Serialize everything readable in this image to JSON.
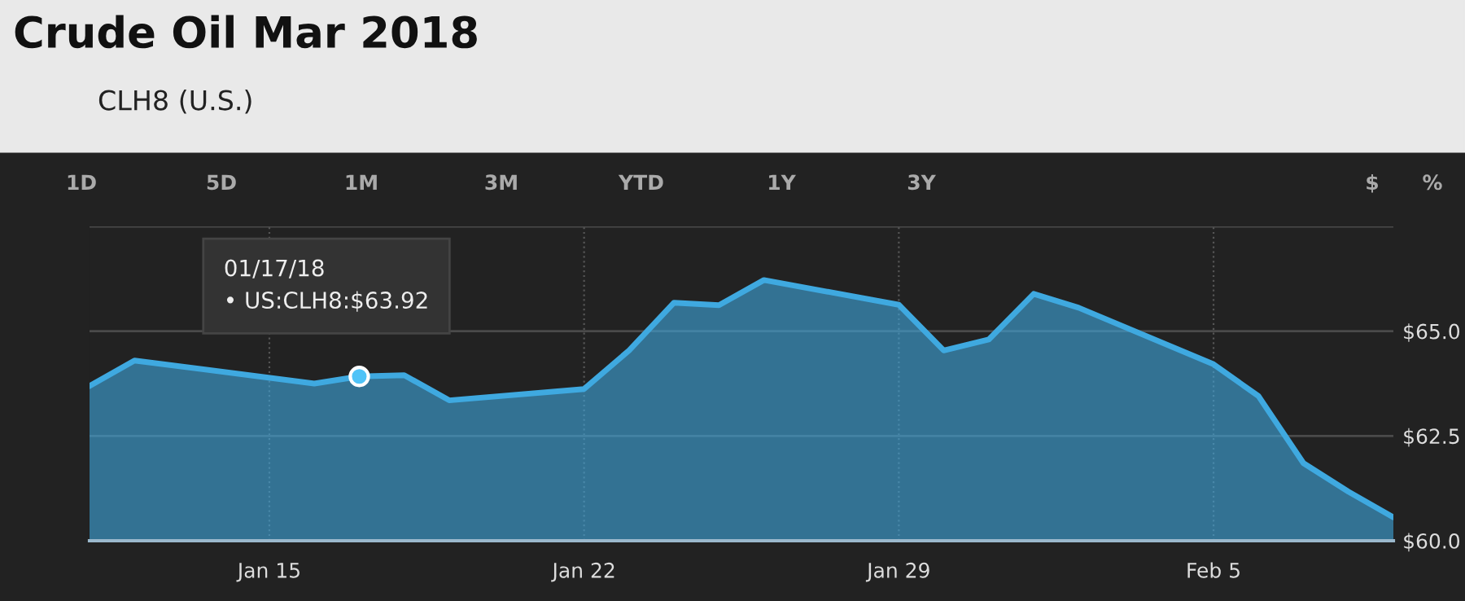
{
  "chart_data": {
    "type": "area",
    "title": "Crude Oil Mar 2018",
    "subtitle": "CLH8 (U.S.)",
    "x": [
      "2018-01-11",
      "2018-01-12",
      "2018-01-16",
      "2018-01-17",
      "2018-01-18",
      "2018-01-19",
      "2018-01-22",
      "2018-01-23",
      "2018-01-24",
      "2018-01-25",
      "2018-01-26",
      "2018-01-29",
      "2018-01-30",
      "2018-01-31",
      "2018-02-01",
      "2018-02-02",
      "2018-02-05",
      "2018-02-06",
      "2018-02-07",
      "2018-02-08",
      "2018-02-09"
    ],
    "series": [
      {
        "color": "#3fa9e0",
        "values": [
          63.69,
          64.3,
          63.75,
          63.92,
          63.95,
          63.35,
          63.62,
          64.54,
          65.68,
          65.62,
          66.22,
          65.63,
          64.54,
          64.8,
          65.89,
          65.56,
          64.21,
          63.45,
          61.85,
          61.17,
          60.56
        ]
      }
    ],
    "xlim": [
      "2018-01-11",
      "2018-02-09"
    ],
    "xticks": [
      {
        "value": "2018-01-15",
        "label": "Jan 15"
      },
      {
        "value": "2018-01-22",
        "label": "Jan 22"
      },
      {
        "value": "2018-01-29",
        "label": "Jan 29"
      },
      {
        "value": "2018-02-05",
        "label": "Feb 5"
      }
    ],
    "ylim": [
      60,
      67.5
    ],
    "yticks": [
      {
        "value": 60,
        "label": "$60.0"
      },
      {
        "value": 62.5,
        "label": "$62.5"
      },
      {
        "value": 65,
        "label": "$65.0"
      },
      {
        "value": 67.5,
        "label": null
      }
    ],
    "grid": true,
    "annotations": [
      {
        "text": "01/17/18\n• US:CLH8:$63.92",
        "x": "2018-01-17",
        "y": 63.92
      },
      "1D",
      "5D",
      "1M",
      "3M",
      "YTD",
      "1Y",
      "3Y",
      "$",
      "%"
    ]
  }
}
